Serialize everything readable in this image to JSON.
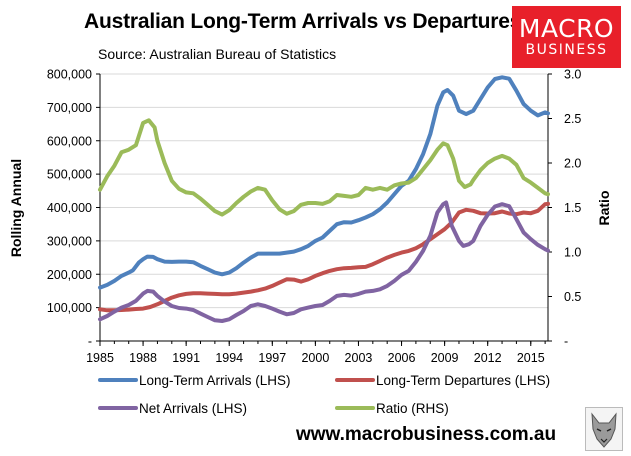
{
  "title": "Australian Long-Term Arrivals vs Departures",
  "subtitle": "Source: Australian Bureau of Statistics",
  "logo": {
    "line1": "MACRO",
    "line2": "BUSINESS"
  },
  "website": "www.macrobusiness.com.au",
  "colors": {
    "arrivals": "#4f81bd",
    "departures": "#c0504d",
    "net": "#8064a2",
    "ratio": "#9bbb59",
    "logo": "#e8202a"
  },
  "chart_data": {
    "type": "line",
    "ylabel": "Rolling Annual",
    "y2label": "Ratio",
    "ylim": [
      0,
      800000
    ],
    "y2lim": [
      0,
      3.0
    ],
    "xlim": [
      1985,
      2016.2
    ],
    "left_ticks": [
      {
        "v": 0,
        "label": "-"
      },
      {
        "v": 100000,
        "label": "100,000"
      },
      {
        "v": 200000,
        "label": "200,000"
      },
      {
        "v": 300000,
        "label": "300,000"
      },
      {
        "v": 400000,
        "label": "400,000"
      },
      {
        "v": 500000,
        "label": "500,000"
      },
      {
        "v": 600000,
        "label": "600,000"
      },
      {
        "v": 700000,
        "label": "700,000"
      },
      {
        "v": 800000,
        "label": "800,000"
      }
    ],
    "right_ticks": [
      {
        "v": 0,
        "label": "-"
      },
      {
        "v": 0.5,
        "label": "0.5"
      },
      {
        "v": 1.0,
        "label": "1.0"
      },
      {
        "v": 1.5,
        "label": "1.5"
      },
      {
        "v": 2.0,
        "label": "2.0"
      },
      {
        "v": 2.5,
        "label": "2.5"
      },
      {
        "v": 3.0,
        "label": "3.0"
      }
    ],
    "x_ticks": [
      {
        "v": 1985,
        "label": "1985"
      },
      {
        "v": 1988,
        "label": "1988"
      },
      {
        "v": 1991,
        "label": "1991"
      },
      {
        "v": 1994,
        "label": "1994"
      },
      {
        "v": 1997,
        "label": "1997"
      },
      {
        "v": 2000,
        "label": "2000"
      },
      {
        "v": 2003,
        "label": "2003"
      },
      {
        "v": 2006,
        "label": "2006"
      },
      {
        "v": 2009,
        "label": "2009"
      },
      {
        "v": 2012,
        "label": "2012"
      },
      {
        "v": 2015,
        "label": "2015"
      }
    ],
    "series": [
      {
        "name": "Long-Term Arrivals (LHS)",
        "axis": "left",
        "color": "#4f81bd",
        "points": [
          [
            1985,
            160000
          ],
          [
            1985.5,
            168000
          ],
          [
            1986,
            180000
          ],
          [
            1986.5,
            195000
          ],
          [
            1987,
            205000
          ],
          [
            1987.3,
            212000
          ],
          [
            1987.7,
            235000
          ],
          [
            1988,
            245000
          ],
          [
            1988.3,
            253000
          ],
          [
            1988.7,
            252000
          ],
          [
            1989,
            245000
          ],
          [
            1989.5,
            238000
          ],
          [
            1990,
            237000
          ],
          [
            1990.5,
            238000
          ],
          [
            1991,
            238000
          ],
          [
            1991.5,
            236000
          ],
          [
            1992,
            225000
          ],
          [
            1992.5,
            215000
          ],
          [
            1993,
            205000
          ],
          [
            1993.5,
            200000
          ],
          [
            1994,
            205000
          ],
          [
            1994.5,
            218000
          ],
          [
            1995,
            235000
          ],
          [
            1995.5,
            250000
          ],
          [
            1996,
            262000
          ],
          [
            1996.5,
            262000
          ],
          [
            1997,
            262000
          ],
          [
            1997.5,
            262000
          ],
          [
            1998,
            265000
          ],
          [
            1998.5,
            268000
          ],
          [
            1999,
            275000
          ],
          [
            1999.5,
            285000
          ],
          [
            2000,
            300000
          ],
          [
            2000.5,
            310000
          ],
          [
            2001,
            330000
          ],
          [
            2001.5,
            350000
          ],
          [
            2002,
            356000
          ],
          [
            2002.5,
            355000
          ],
          [
            2003,
            362000
          ],
          [
            2003.5,
            370000
          ],
          [
            2004,
            380000
          ],
          [
            2004.5,
            395000
          ],
          [
            2005,
            415000
          ],
          [
            2005.5,
            440000
          ],
          [
            2006,
            465000
          ],
          [
            2006.5,
            480000
          ],
          [
            2007,
            515000
          ],
          [
            2007.5,
            560000
          ],
          [
            2008,
            620000
          ],
          [
            2008.5,
            705000
          ],
          [
            2008.9,
            745000
          ],
          [
            2009.2,
            752000
          ],
          [
            2009.6,
            735000
          ],
          [
            2010,
            690000
          ],
          [
            2010.5,
            680000
          ],
          [
            2011,
            690000
          ],
          [
            2011.5,
            725000
          ],
          [
            2012,
            760000
          ],
          [
            2012.5,
            785000
          ],
          [
            2013,
            790000
          ],
          [
            2013.5,
            786000
          ],
          [
            2014,
            750000
          ],
          [
            2014.5,
            710000
          ],
          [
            2015,
            690000
          ],
          [
            2015.5,
            676000
          ],
          [
            2016,
            685000
          ],
          [
            2016.2,
            682000
          ]
        ]
      },
      {
        "name": "Long-Term Departures (LHS)",
        "axis": "left",
        "color": "#c0504d",
        "points": [
          [
            1985,
            95000
          ],
          [
            1985.5,
            92000
          ],
          [
            1986,
            92000
          ],
          [
            1986.5,
            93000
          ],
          [
            1987,
            94000
          ],
          [
            1987.5,
            96000
          ],
          [
            1988,
            97000
          ],
          [
            1988.5,
            102000
          ],
          [
            1989,
            110000
          ],
          [
            1989.5,
            120000
          ],
          [
            1990,
            130000
          ],
          [
            1990.5,
            137000
          ],
          [
            1991,
            141000
          ],
          [
            1991.5,
            143000
          ],
          [
            1992,
            143000
          ],
          [
            1992.5,
            142000
          ],
          [
            1993,
            141000
          ],
          [
            1993.5,
            140000
          ],
          [
            1994,
            140000
          ],
          [
            1994.5,
            142000
          ],
          [
            1995,
            145000
          ],
          [
            1995.5,
            148000
          ],
          [
            1996,
            152000
          ],
          [
            1996.5,
            157000
          ],
          [
            1997,
            165000
          ],
          [
            1997.5,
            175000
          ],
          [
            1998,
            185000
          ],
          [
            1998.5,
            184000
          ],
          [
            1999,
            178000
          ],
          [
            1999.5,
            185000
          ],
          [
            2000,
            195000
          ],
          [
            2000.5,
            203000
          ],
          [
            2001,
            210000
          ],
          [
            2001.5,
            215000
          ],
          [
            2002,
            218000
          ],
          [
            2002.5,
            219000
          ],
          [
            2003,
            221000
          ],
          [
            2003.5,
            222000
          ],
          [
            2004,
            230000
          ],
          [
            2004.5,
            240000
          ],
          [
            2005,
            250000
          ],
          [
            2005.5,
            258000
          ],
          [
            2006,
            265000
          ],
          [
            2006.5,
            270000
          ],
          [
            2007,
            278000
          ],
          [
            2007.5,
            290000
          ],
          [
            2008,
            305000
          ],
          [
            2008.5,
            320000
          ],
          [
            2009,
            335000
          ],
          [
            2009.5,
            355000
          ],
          [
            2010,
            385000
          ],
          [
            2010.5,
            393000
          ],
          [
            2011,
            390000
          ],
          [
            2011.5,
            383000
          ],
          [
            2012,
            382000
          ],
          [
            2012.5,
            383000
          ],
          [
            2013,
            388000
          ],
          [
            2013.5,
            382000
          ],
          [
            2014,
            380000
          ],
          [
            2014.5,
            385000
          ],
          [
            2015,
            383000
          ],
          [
            2015.5,
            390000
          ],
          [
            2016,
            410000
          ],
          [
            2016.2,
            411000
          ]
        ]
      },
      {
        "name": "Net Arrivals (LHS)",
        "axis": "left",
        "color": "#8064a2",
        "points": [
          [
            1985,
            65000
          ],
          [
            1985.5,
            75000
          ],
          [
            1986,
            88000
          ],
          [
            1986.5,
            100000
          ],
          [
            1987,
            108000
          ],
          [
            1987.5,
            120000
          ],
          [
            1988,
            142000
          ],
          [
            1988.3,
            150000
          ],
          [
            1988.7,
            148000
          ],
          [
            1989,
            135000
          ],
          [
            1989.5,
            118000
          ],
          [
            1990,
            105000
          ],
          [
            1990.5,
            99000
          ],
          [
            1991,
            97000
          ],
          [
            1991.5,
            93000
          ],
          [
            1992,
            82000
          ],
          [
            1992.5,
            72000
          ],
          [
            1993,
            62000
          ],
          [
            1993.5,
            60000
          ],
          [
            1994,
            65000
          ],
          [
            1994.5,
            78000
          ],
          [
            1995,
            90000
          ],
          [
            1995.5,
            105000
          ],
          [
            1996,
            110000
          ],
          [
            1996.5,
            105000
          ],
          [
            1997,
            97000
          ],
          [
            1997.5,
            88000
          ],
          [
            1998,
            80000
          ],
          [
            1998.5,
            84000
          ],
          [
            1999,
            95000
          ],
          [
            1999.5,
            100000
          ],
          [
            2000,
            105000
          ],
          [
            2000.5,
            108000
          ],
          [
            2001,
            120000
          ],
          [
            2001.5,
            135000
          ],
          [
            2002,
            138000
          ],
          [
            2002.5,
            136000
          ],
          [
            2003,
            141000
          ],
          [
            2003.5,
            148000
          ],
          [
            2004,
            150000
          ],
          [
            2004.5,
            155000
          ],
          [
            2005,
            165000
          ],
          [
            2005.5,
            180000
          ],
          [
            2006,
            198000
          ],
          [
            2006.5,
            210000
          ],
          [
            2007,
            237000
          ],
          [
            2007.5,
            270000
          ],
          [
            2008,
            315000
          ],
          [
            2008.5,
            385000
          ],
          [
            2008.9,
            410000
          ],
          [
            2009.1,
            415000
          ],
          [
            2009.5,
            345000
          ],
          [
            2010,
            300000
          ],
          [
            2010.3,
            285000
          ],
          [
            2010.7,
            290000
          ],
          [
            2011,
            300000
          ],
          [
            2011.5,
            345000
          ],
          [
            2012,
            378000
          ],
          [
            2012.5,
            403000
          ],
          [
            2013,
            410000
          ],
          [
            2013.5,
            404000
          ],
          [
            2014,
            365000
          ],
          [
            2014.5,
            325000
          ],
          [
            2015,
            305000
          ],
          [
            2015.5,
            288000
          ],
          [
            2016,
            275000
          ],
          [
            2016.2,
            271000
          ]
        ]
      },
      {
        "name": "Ratio (RHS)",
        "axis": "right",
        "color": "#9bbb59",
        "points": [
          [
            1985,
            1.7
          ],
          [
            1985.5,
            1.85
          ],
          [
            1986,
            1.97
          ],
          [
            1986.5,
            2.12
          ],
          [
            1987,
            2.15
          ],
          [
            1987.5,
            2.2
          ],
          [
            1988,
            2.45
          ],
          [
            1988.4,
            2.48
          ],
          [
            1988.8,
            2.4
          ],
          [
            1989,
            2.25
          ],
          [
            1989.5,
            2.0
          ],
          [
            1990,
            1.8
          ],
          [
            1990.5,
            1.71
          ],
          [
            1991,
            1.67
          ],
          [
            1991.5,
            1.66
          ],
          [
            1992,
            1.6
          ],
          [
            1992.5,
            1.53
          ],
          [
            1993,
            1.46
          ],
          [
            1993.5,
            1.42
          ],
          [
            1994,
            1.47
          ],
          [
            1994.5,
            1.55
          ],
          [
            1995,
            1.62
          ],
          [
            1995.5,
            1.68
          ],
          [
            1996,
            1.72
          ],
          [
            1996.5,
            1.7
          ],
          [
            1997,
            1.58
          ],
          [
            1997.5,
            1.48
          ],
          [
            1998,
            1.43
          ],
          [
            1998.5,
            1.46
          ],
          [
            1999,
            1.53
          ],
          [
            1999.5,
            1.55
          ],
          [
            2000,
            1.55
          ],
          [
            2000.5,
            1.54
          ],
          [
            2001,
            1.57
          ],
          [
            2001.5,
            1.64
          ],
          [
            2002,
            1.63
          ],
          [
            2002.5,
            1.62
          ],
          [
            2003,
            1.64
          ],
          [
            2003.5,
            1.72
          ],
          [
            2004,
            1.7
          ],
          [
            2004.5,
            1.72
          ],
          [
            2005,
            1.7
          ],
          [
            2005.5,
            1.75
          ],
          [
            2006,
            1.77
          ],
          [
            2006.5,
            1.78
          ],
          [
            2007,
            1.83
          ],
          [
            2007.5,
            1.93
          ],
          [
            2008,
            2.03
          ],
          [
            2008.5,
            2.15
          ],
          [
            2008.9,
            2.22
          ],
          [
            2009.2,
            2.2
          ],
          [
            2009.6,
            2.05
          ],
          [
            2010,
            1.8
          ],
          [
            2010.4,
            1.73
          ],
          [
            2010.8,
            1.76
          ],
          [
            2011,
            1.81
          ],
          [
            2011.5,
            1.92
          ],
          [
            2012,
            2.0
          ],
          [
            2012.5,
            2.05
          ],
          [
            2013,
            2.08
          ],
          [
            2013.5,
            2.05
          ],
          [
            2014,
            1.98
          ],
          [
            2014.5,
            1.83
          ],
          [
            2015,
            1.78
          ],
          [
            2015.5,
            1.72
          ],
          [
            2016,
            1.66
          ],
          [
            2016.2,
            1.65
          ]
        ]
      }
    ]
  }
}
